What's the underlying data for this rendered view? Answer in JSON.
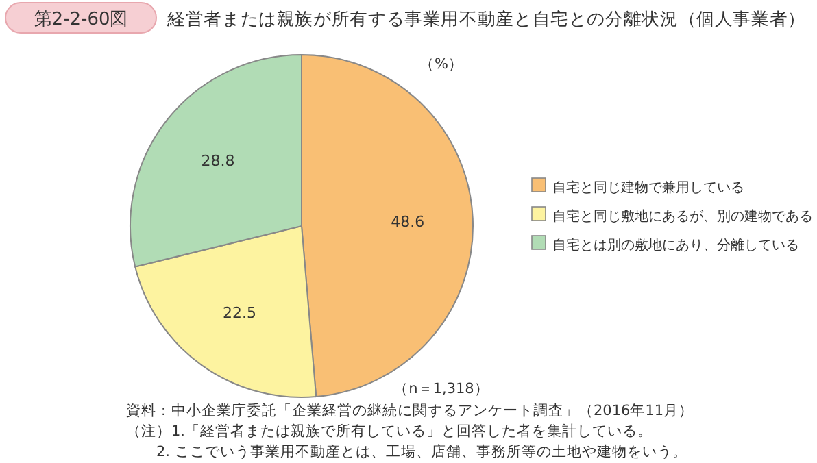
{
  "chart_data": {
    "type": "pie",
    "title": "経営者または親族が所有する事業用不動産と自宅との分離状況（個人事業者）",
    "subtitle": "第2-2-60図",
    "categories": [
      "自宅と同じ建物で兼用している",
      "自宅と同じ敷地にあるが、別の建物である",
      "自宅とは別の敷地にあり、分離している"
    ],
    "values": [
      48.6,
      22.5,
      28.8
    ],
    "colors": [
      "#f9bf74",
      "#fdf3a0",
      "#b1dcb5"
    ],
    "data_labels": true,
    "legend": "right",
    "annotations": [
      "（%）",
      "（n＝1,318）",
      "資料：中小企業庁委託「企業経営の継続に関するアンケート調査」（2016年11月）",
      "（注）1.「経営者または親族で所有している」と回答した者を集計している。",
      "2. ここでいう事業用不動産とは、工場、店舗、事務所等の土地や建物をいう。"
    ]
  }
}
